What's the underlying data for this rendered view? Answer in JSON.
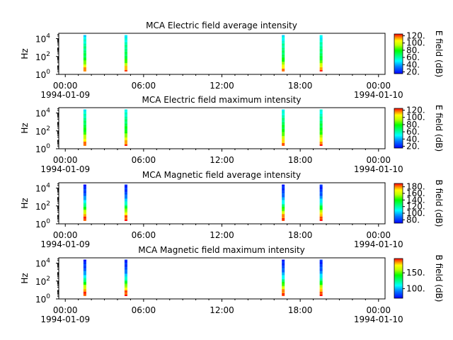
{
  "figure": {
    "background": "#ffffff"
  },
  "shared_axes": {
    "x_ticks": [
      "00:00",
      "06:00",
      "12:00",
      "18:00",
      "00:00"
    ],
    "x_tick_hours": [
      0,
      6,
      12,
      18,
      24
    ],
    "x_minor_step_hours": 1,
    "x_range_hours": [
      -0.5,
      24.5
    ],
    "date_start": "1994-01-09",
    "date_end": "1994-01-10",
    "ylabel": "Hz",
    "y_scale": "log",
    "y_ticks": [
      {
        "base": "10",
        "exp": "0",
        "value": 1
      },
      {
        "base": "10",
        "exp": "2",
        "value": 100
      },
      {
        "base": "10",
        "exp": "4",
        "value": 10000
      }
    ],
    "y_range_log10": [
      0,
      4.6
    ]
  },
  "chart_data": [
    {
      "type": "heatmap",
      "title": "MCA  Electric field average intensity",
      "colorbar_label": "E field (dB)",
      "colorbar_range": [
        15,
        125
      ],
      "colorbar_ticks": [
        "20.",
        "40.",
        "60.",
        "80.",
        "100.",
        "120."
      ],
      "colorbar_tick_values": [
        20,
        40,
        60,
        80,
        100,
        120
      ],
      "palette": "rainbow",
      "bursts_hours": [
        1.5,
        4.65,
        16.7,
        19.6
      ],
      "profile": "electric-avg"
    },
    {
      "type": "heatmap",
      "title": "MCA  Electric field maximum intensity",
      "colorbar_label": "E field (dB)",
      "colorbar_range": [
        15,
        125
      ],
      "colorbar_ticks": [
        "20.",
        "40.",
        "60.",
        "80.",
        "100.",
        "120."
      ],
      "colorbar_tick_values": [
        20,
        40,
        60,
        80,
        100,
        120
      ],
      "palette": "rainbow",
      "bursts_hours": [
        1.5,
        4.65,
        16.7,
        19.6
      ],
      "profile": "electric-max"
    },
    {
      "type": "heatmap",
      "title": "MCA  Magnetic field average intensity",
      "colorbar_label": "B field (dB)",
      "colorbar_range": [
        70,
        190
      ],
      "colorbar_ticks": [
        "80.",
        "100.",
        "120.",
        "140.",
        "160.",
        "180."
      ],
      "colorbar_tick_values": [
        80,
        100,
        120,
        140,
        160,
        180
      ],
      "palette": "rainbow",
      "bursts_hours": [
        1.5,
        4.65,
        16.7,
        19.6
      ],
      "profile": "magnetic"
    },
    {
      "type": "heatmap",
      "title": "MCA  Magnetic field maximum intensity",
      "colorbar_label": "B field (dB)",
      "colorbar_range": [
        70,
        195
      ],
      "colorbar_ticks": [
        "100.",
        "150."
      ],
      "colorbar_tick_values": [
        100,
        150
      ],
      "palette": "rainbow",
      "bursts_hours": [
        1.5,
        4.65,
        16.7,
        19.6
      ],
      "profile": "magnetic"
    }
  ]
}
